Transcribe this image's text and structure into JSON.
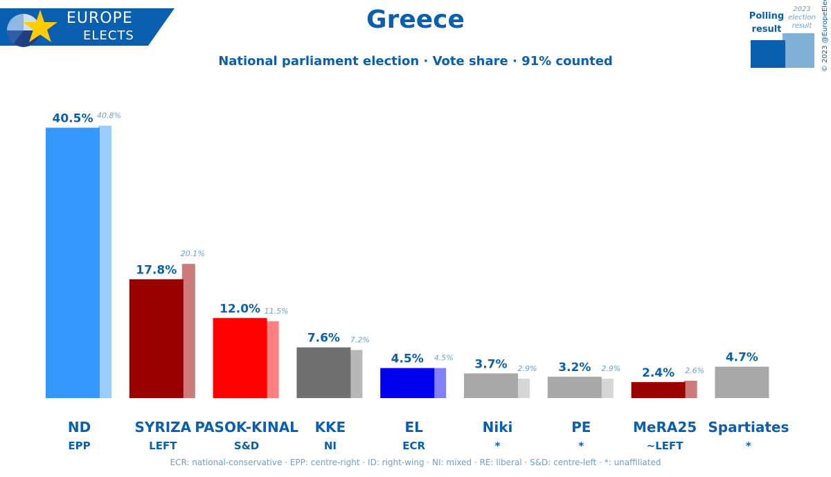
{
  "logo": {
    "top": "EUROPE",
    "bottom": "ELECTS",
    "color": "#0a5fb0"
  },
  "title": "Greece",
  "subtitle": "National parliament election · Vote share · 91% counted",
  "legend": {
    "poll_label": "Polling result",
    "prev_label": "2023 election result"
  },
  "copyright": "© 2023 @EuropeElects",
  "footnote": "ECR: national-conservative · EPP: centre-right · ID: right-wing · NI: mixed · RE: liberal · S&D: centre-left · *: unaffiliated",
  "chart_data": {
    "type": "bar",
    "title": "Greece",
    "subtitle": "National parliament election · Vote share · 91% counted",
    "ylim": [
      0,
      42
    ],
    "grid": false,
    "legend": "top-right",
    "categories": [
      "ND",
      "SYRIZA",
      "PASOK-KINAL",
      "KKE",
      "EL",
      "Niki",
      "PE",
      "MeRA25",
      "Spartiates"
    ],
    "groups": [
      "EPP",
      "LEFT",
      "S&D",
      "NI",
      "ECR",
      "*",
      "*",
      "~LEFT",
      "*"
    ],
    "series": [
      {
        "name": "Polling result",
        "values": [
          40.5,
          17.8,
          12.0,
          7.6,
          4.5,
          3.7,
          3.2,
          2.4,
          4.7
        ],
        "labels": [
          "40.5%",
          "17.8%",
          "12.0%",
          "7.6%",
          "4.5%",
          "3.7%",
          "3.2%",
          "2.4%",
          "4.7%"
        ],
        "colors": [
          "#3399ff",
          "#990000",
          "#ff0000",
          "#707070",
          "#0000ee",
          "#a8a8a8",
          "#a8a8a8",
          "#990000",
          "#a8a8a8"
        ]
      },
      {
        "name": "2023 election result",
        "values": [
          40.8,
          20.1,
          11.5,
          7.2,
          4.5,
          2.9,
          2.9,
          2.6,
          null
        ],
        "labels": [
          "40.8%",
          "20.1%",
          "11.5%",
          "7.2%",
          "4.5%",
          "2.9%",
          "2.9%",
          "2.6%",
          ""
        ],
        "colors": [
          "#99ccff",
          "#cc7a7a",
          "#ff8080",
          "#b8b8b8",
          "#8080ff",
          "#d6d6d6",
          "#d6d6d6",
          "#cc7a7a",
          "#d6d6d6"
        ]
      }
    ]
  }
}
